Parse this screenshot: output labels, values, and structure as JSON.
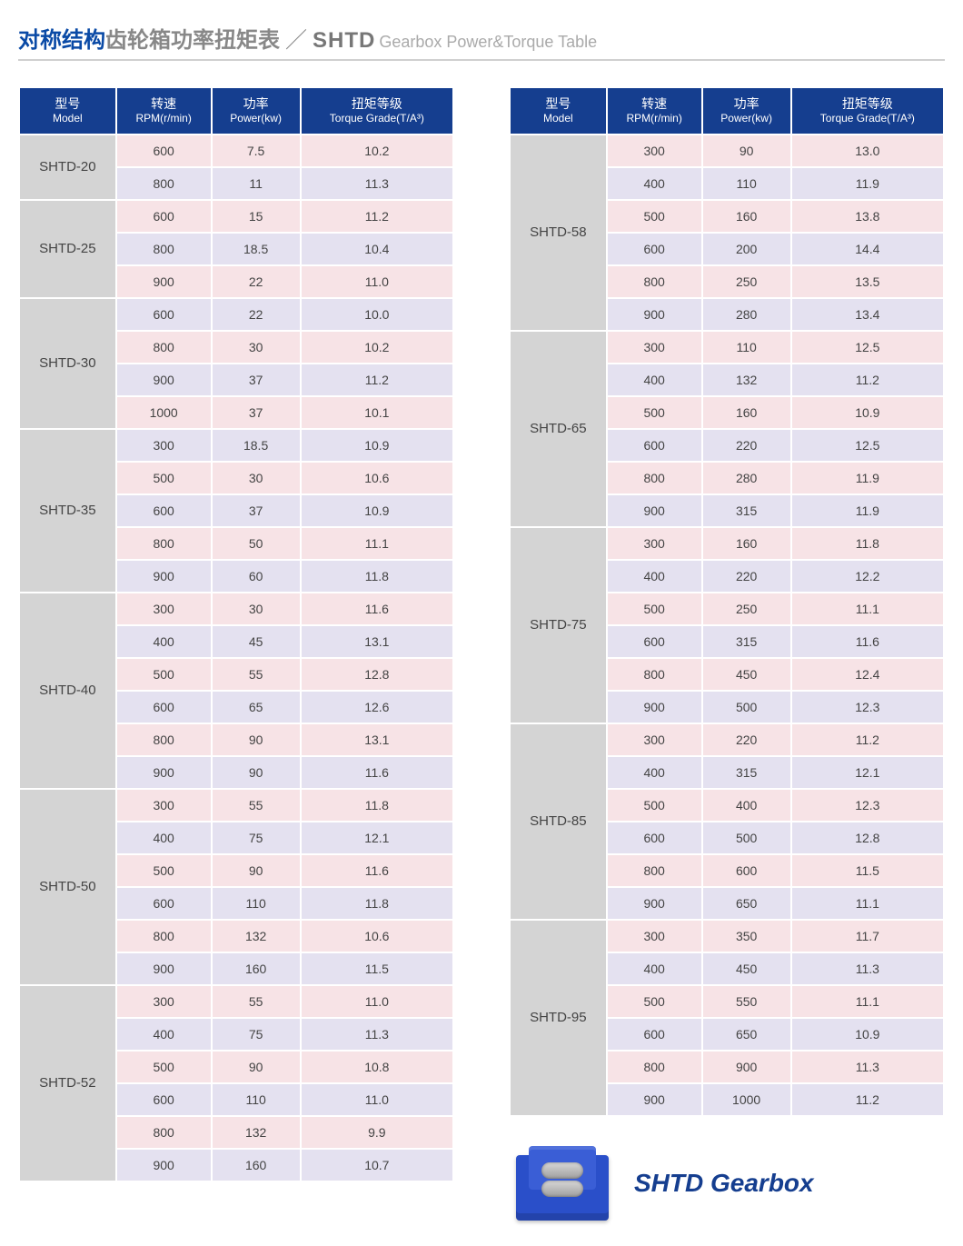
{
  "title": {
    "blue": "对称结构",
    "grey": "齿轮箱功率扭矩表",
    "sep": "／",
    "code": "SHTD",
    "en": "Gearbox Power&Torque Table"
  },
  "columns": [
    {
      "cn": "型号",
      "en": "Model"
    },
    {
      "cn": "转速",
      "en": "RPM(r/min)"
    },
    {
      "cn": "功率",
      "en": "Power(kw)"
    },
    {
      "cn": "扭矩等级",
      "en": "Torque Grade(T/A³)"
    }
  ],
  "colors": {
    "header_bg": "#153e8f",
    "model_bg": "#d4d4d4",
    "row_even": "#f7e3e6",
    "row_odd": "#e4e1f0",
    "title_blue": "#0a4aa6",
    "title_grey": "#888888"
  },
  "left": [
    {
      "model": "SHTD-20",
      "rows": [
        {
          "rpm": "600",
          "power": "7.5",
          "torque": "10.2"
        },
        {
          "rpm": "800",
          "power": "11",
          "torque": "11.3"
        }
      ]
    },
    {
      "model": "SHTD-25",
      "rows": [
        {
          "rpm": "600",
          "power": "15",
          "torque": "11.2"
        },
        {
          "rpm": "800",
          "power": "18.5",
          "torque": "10.4"
        },
        {
          "rpm": "900",
          "power": "22",
          "torque": "11.0"
        }
      ]
    },
    {
      "model": "SHTD-30",
      "rows": [
        {
          "rpm": "600",
          "power": "22",
          "torque": "10.0"
        },
        {
          "rpm": "800",
          "power": "30",
          "torque": "10.2"
        },
        {
          "rpm": "900",
          "power": "37",
          "torque": "11.2"
        },
        {
          "rpm": "1000",
          "power": "37",
          "torque": "10.1"
        }
      ]
    },
    {
      "model": "SHTD-35",
      "rows": [
        {
          "rpm": "300",
          "power": "18.5",
          "torque": "10.9"
        },
        {
          "rpm": "500",
          "power": "30",
          "torque": "10.6"
        },
        {
          "rpm": "600",
          "power": "37",
          "torque": "10.9"
        },
        {
          "rpm": "800",
          "power": "50",
          "torque": "11.1"
        },
        {
          "rpm": "900",
          "power": "60",
          "torque": "11.8"
        }
      ]
    },
    {
      "model": "SHTD-40",
      "rows": [
        {
          "rpm": "300",
          "power": "30",
          "torque": "11.6"
        },
        {
          "rpm": "400",
          "power": "45",
          "torque": "13.1"
        },
        {
          "rpm": "500",
          "power": "55",
          "torque": "12.8"
        },
        {
          "rpm": "600",
          "power": "65",
          "torque": "12.6"
        },
        {
          "rpm": "800",
          "power": "90",
          "torque": "13.1"
        },
        {
          "rpm": "900",
          "power": "90",
          "torque": "11.6"
        }
      ]
    },
    {
      "model": "SHTD-50",
      "rows": [
        {
          "rpm": "300",
          "power": "55",
          "torque": "11.8"
        },
        {
          "rpm": "400",
          "power": "75",
          "torque": "12.1"
        },
        {
          "rpm": "500",
          "power": "90",
          "torque": "11.6"
        },
        {
          "rpm": "600",
          "power": "110",
          "torque": "11.8"
        },
        {
          "rpm": "800",
          "power": "132",
          "torque": "10.6"
        },
        {
          "rpm": "900",
          "power": "160",
          "torque": "11.5"
        }
      ]
    },
    {
      "model": "SHTD-52",
      "rows": [
        {
          "rpm": "300",
          "power": "55",
          "torque": "11.0"
        },
        {
          "rpm": "400",
          "power": "75",
          "torque": "11.3"
        },
        {
          "rpm": "500",
          "power": "90",
          "torque": "10.8"
        },
        {
          "rpm": "600",
          "power": "110",
          "torque": "11.0"
        },
        {
          "rpm": "800",
          "power": "132",
          "torque": "9.9"
        },
        {
          "rpm": "900",
          "power": "160",
          "torque": "10.7"
        }
      ]
    }
  ],
  "right": [
    {
      "model": "SHTD-58",
      "rows": [
        {
          "rpm": "300",
          "power": "90",
          "torque": "13.0"
        },
        {
          "rpm": "400",
          "power": "110",
          "torque": "11.9"
        },
        {
          "rpm": "500",
          "power": "160",
          "torque": "13.8"
        },
        {
          "rpm": "600",
          "power": "200",
          "torque": "14.4"
        },
        {
          "rpm": "800",
          "power": "250",
          "torque": "13.5"
        },
        {
          "rpm": "900",
          "power": "280",
          "torque": "13.4"
        }
      ]
    },
    {
      "model": "SHTD-65",
      "rows": [
        {
          "rpm": "300",
          "power": "110",
          "torque": "12.5"
        },
        {
          "rpm": "400",
          "power": "132",
          "torque": "11.2"
        },
        {
          "rpm": "500",
          "power": "160",
          "torque": "10.9"
        },
        {
          "rpm": "600",
          "power": "220",
          "torque": "12.5"
        },
        {
          "rpm": "800",
          "power": "280",
          "torque": "11.9"
        },
        {
          "rpm": "900",
          "power": "315",
          "torque": "11.9"
        }
      ]
    },
    {
      "model": "SHTD-75",
      "rows": [
        {
          "rpm": "300",
          "power": "160",
          "torque": "11.8"
        },
        {
          "rpm": "400",
          "power": "220",
          "torque": "12.2"
        },
        {
          "rpm": "500",
          "power": "250",
          "torque": "11.1"
        },
        {
          "rpm": "600",
          "power": "315",
          "torque": "11.6"
        },
        {
          "rpm": "800",
          "power": "450",
          "torque": "12.4"
        },
        {
          "rpm": "900",
          "power": "500",
          "torque": "12.3"
        }
      ]
    },
    {
      "model": "SHTD-85",
      "rows": [
        {
          "rpm": "300",
          "power": "220",
          "torque": "11.2"
        },
        {
          "rpm": "400",
          "power": "315",
          "torque": "12.1"
        },
        {
          "rpm": "500",
          "power": "400",
          "torque": "12.3"
        },
        {
          "rpm": "600",
          "power": "500",
          "torque": "12.8"
        },
        {
          "rpm": "800",
          "power": "600",
          "torque": "11.5"
        },
        {
          "rpm": "900",
          "power": "650",
          "torque": "11.1"
        }
      ]
    },
    {
      "model": "SHTD-95",
      "rows": [
        {
          "rpm": "300",
          "power": "350",
          "torque": "11.7"
        },
        {
          "rpm": "400",
          "power": "450",
          "torque": "11.3"
        },
        {
          "rpm": "500",
          "power": "550",
          "torque": "11.1"
        },
        {
          "rpm": "600",
          "power": "650",
          "torque": "10.9"
        },
        {
          "rpm": "800",
          "power": "900",
          "torque": "11.3"
        },
        {
          "rpm": "900",
          "power": "1000",
          "torque": "11.2"
        }
      ]
    }
  ],
  "footer_label": "SHTD Gearbox"
}
